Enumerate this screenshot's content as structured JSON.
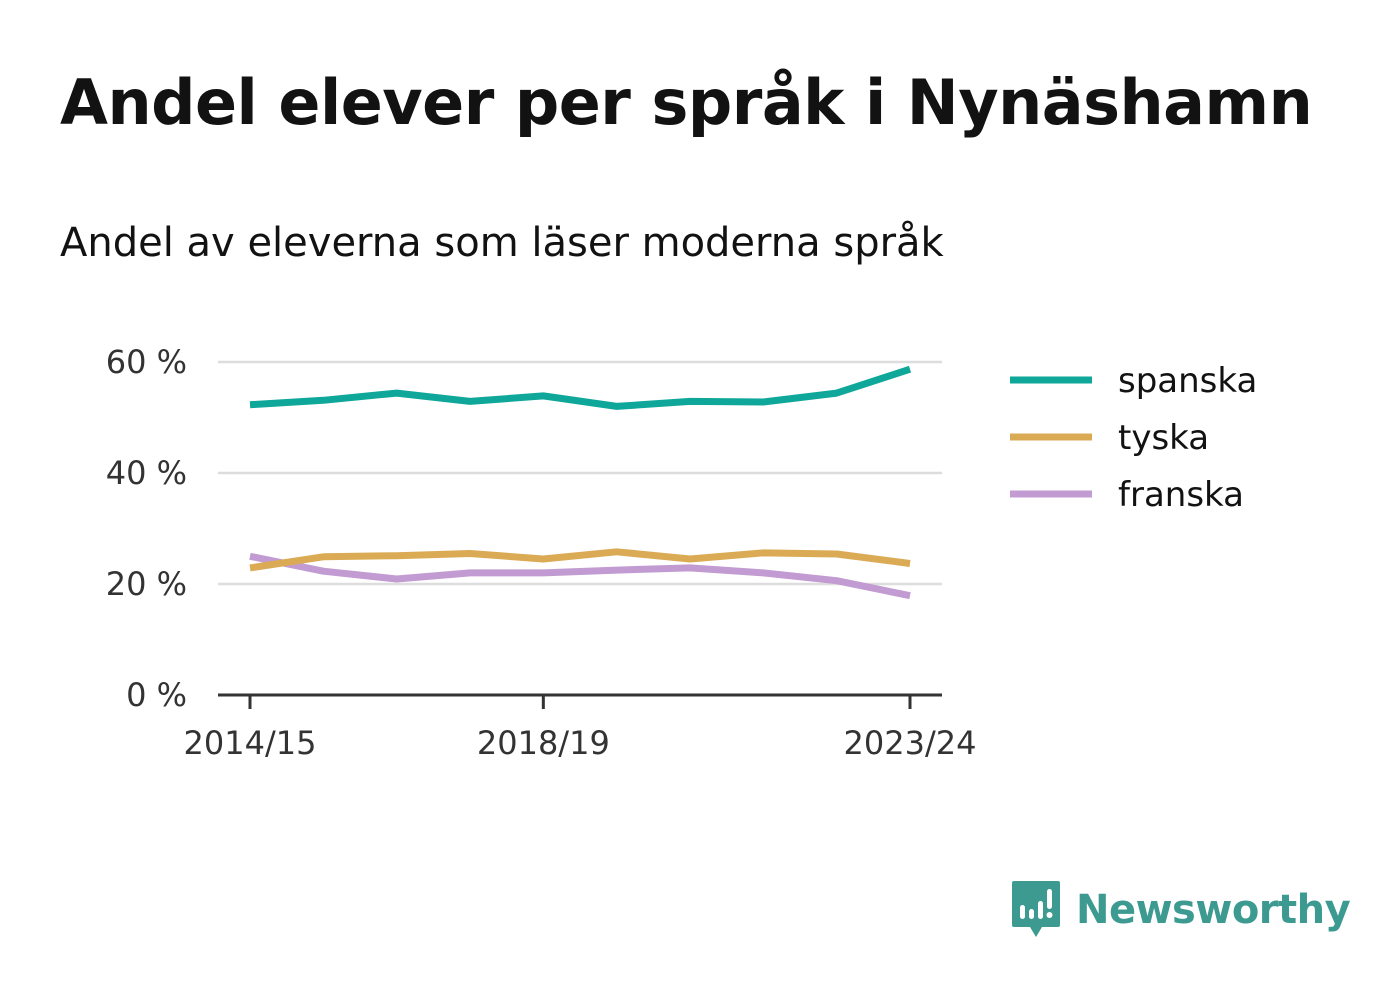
{
  "title": "Andel elever per språk i Nynäshamn",
  "subtitle": "Andel av eleverna som läser moderna språk",
  "brand": {
    "name": "Newsworthy",
    "icon": "newsworthy-logo-icon",
    "color": "#3d9a91"
  },
  "chart_data": {
    "type": "line",
    "x": [
      "2014/15",
      "2015/16",
      "2016/17",
      "2017/18",
      "2018/19",
      "2019/20",
      "2020/21",
      "2021/22",
      "2022/23",
      "2023/24"
    ],
    "x_tick_labels": [
      "2014/15",
      "2018/19",
      "2023/24"
    ],
    "ylim": [
      0,
      60
    ],
    "y_ticks": [
      0,
      20,
      40,
      60
    ],
    "y_tick_labels": [
      "0 %",
      "20 %",
      "40 %",
      "60 %"
    ],
    "grid": true,
    "legend_position": "right",
    "series": [
      {
        "name": "spanska",
        "color": "#0ea79a",
        "values": [
          52.3,
          53.1,
          54.4,
          52.9,
          53.9,
          52.0,
          52.9,
          52.8,
          54.4,
          58.7
        ]
      },
      {
        "name": "tyska",
        "color": "#dbaa55",
        "values": [
          22.9,
          24.9,
          25.1,
          25.5,
          24.5,
          25.8,
          24.5,
          25.6,
          25.4,
          23.7
        ]
      },
      {
        "name": "franska",
        "color": "#c19bd1",
        "values": [
          25.0,
          22.3,
          20.9,
          22.0,
          22.0,
          22.5,
          22.9,
          22.0,
          20.6,
          17.9
        ]
      }
    ]
  }
}
